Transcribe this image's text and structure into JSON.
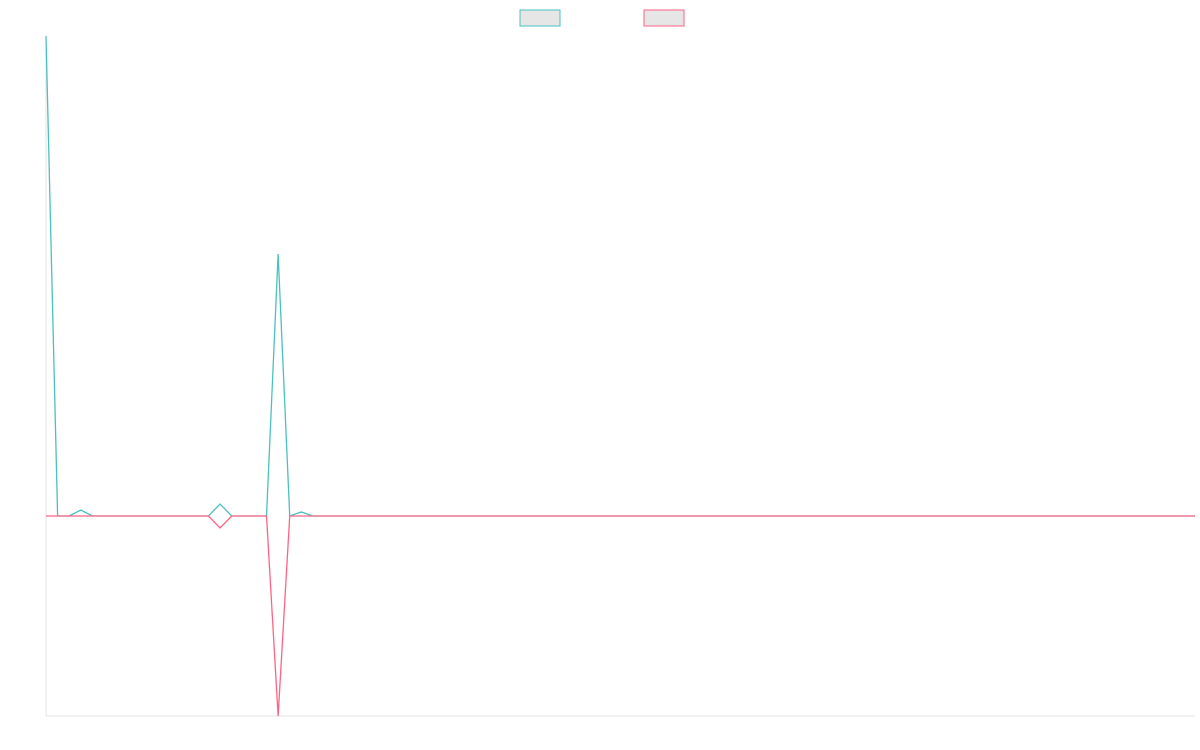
{
  "chart_data": {
    "type": "line",
    "title": "",
    "xlabel": "",
    "ylabel": "",
    "legend": "top-center",
    "grid": false,
    "x": [
      0,
      1,
      2,
      3,
      4,
      5,
      6,
      7,
      8,
      9,
      10,
      11,
      12,
      13,
      14,
      15,
      16,
      17,
      18,
      19,
      20,
      21,
      22,
      23,
      24,
      25,
      26,
      27,
      28,
      29,
      30,
      31,
      32,
      33,
      34,
      35,
      36,
      37,
      38,
      39,
      40,
      41,
      42,
      43,
      44,
      45,
      46,
      47,
      48,
      49,
      50,
      51,
      52,
      53,
      54,
      55,
      56,
      57,
      58,
      59,
      60,
      61,
      62,
      63,
      64,
      65,
      66,
      67,
      68,
      69,
      70,
      71,
      72,
      73,
      74,
      75,
      76,
      77,
      78,
      79,
      80,
      81,
      82,
      83,
      84,
      85,
      86,
      87,
      88,
      89,
      90,
      91,
      92,
      93,
      94,
      95,
      96,
      97,
      98,
      99
    ],
    "xlim": [
      0,
      99
    ],
    "ylim": [
      -100,
      240
    ],
    "series": [
      {
        "name": "",
        "color": "#4bc0c0",
        "values": [
          240,
          0,
          0,
          3,
          0,
          0,
          0,
          0,
          0,
          0,
          0,
          0,
          0,
          0,
          0,
          6,
          0,
          0,
          0,
          0,
          131,
          0,
          2,
          0,
          0,
          0,
          0,
          0,
          0,
          0,
          0,
          0,
          0,
          0,
          0,
          0,
          0,
          0,
          0,
          0,
          0,
          0,
          0,
          0,
          0,
          0,
          0,
          0,
          0,
          0,
          0,
          0,
          0,
          0,
          0,
          0,
          0,
          0,
          0,
          0,
          0,
          0,
          0,
          0,
          0,
          0,
          0,
          0,
          0,
          0,
          0,
          0,
          0,
          0,
          0,
          0,
          0,
          0,
          0,
          0,
          0,
          0,
          0,
          0,
          0,
          0,
          0,
          0,
          0,
          0,
          0,
          0,
          0,
          0,
          0,
          0,
          0,
          0,
          0,
          0
        ]
      },
      {
        "name": "",
        "color": "#ff6384",
        "values": [
          0,
          0,
          0,
          0,
          0,
          0,
          0,
          0,
          0,
          0,
          0,
          0,
          0,
          0,
          0,
          -6,
          0,
          0,
          0,
          0,
          -100,
          0,
          0,
          0,
          0,
          0,
          0,
          0,
          0,
          0,
          0,
          0,
          0,
          0,
          0,
          0,
          0,
          0,
          0,
          0,
          0,
          0,
          0,
          0,
          0,
          0,
          0,
          0,
          0,
          0,
          0,
          0,
          0,
          0,
          0,
          0,
          0,
          0,
          0,
          0,
          0,
          0,
          0,
          0,
          0,
          0,
          0,
          0,
          0,
          0,
          0,
          0,
          0,
          0,
          0,
          0,
          0,
          0,
          0,
          0,
          0,
          0,
          0,
          0,
          0,
          0,
          0,
          0,
          0,
          0,
          0,
          0,
          0,
          0,
          0,
          0,
          0,
          0,
          0,
          0
        ]
      }
    ]
  }
}
